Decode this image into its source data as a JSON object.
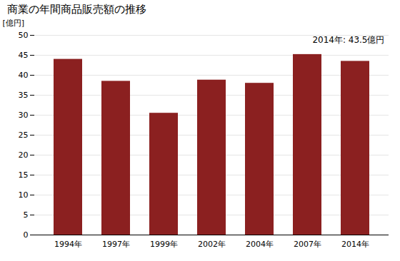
{
  "chart_data": {
    "type": "bar",
    "title": "商業の年間商品販売額の推移",
    "ylabel": "[億円]",
    "annotation": "2014年: 43.5億円",
    "categories": [
      "1994年",
      "1997年",
      "1999年",
      "2002年",
      "2004年",
      "2007年",
      "2014年"
    ],
    "values": [
      44.0,
      38.5,
      30.5,
      38.8,
      38.0,
      45.2,
      43.5
    ],
    "color": "#8B2020",
    "ylim": [
      0,
      50
    ],
    "yticks": [
      0,
      5,
      10,
      15,
      20,
      25,
      30,
      35,
      40,
      45,
      50
    ],
    "grid": true
  }
}
